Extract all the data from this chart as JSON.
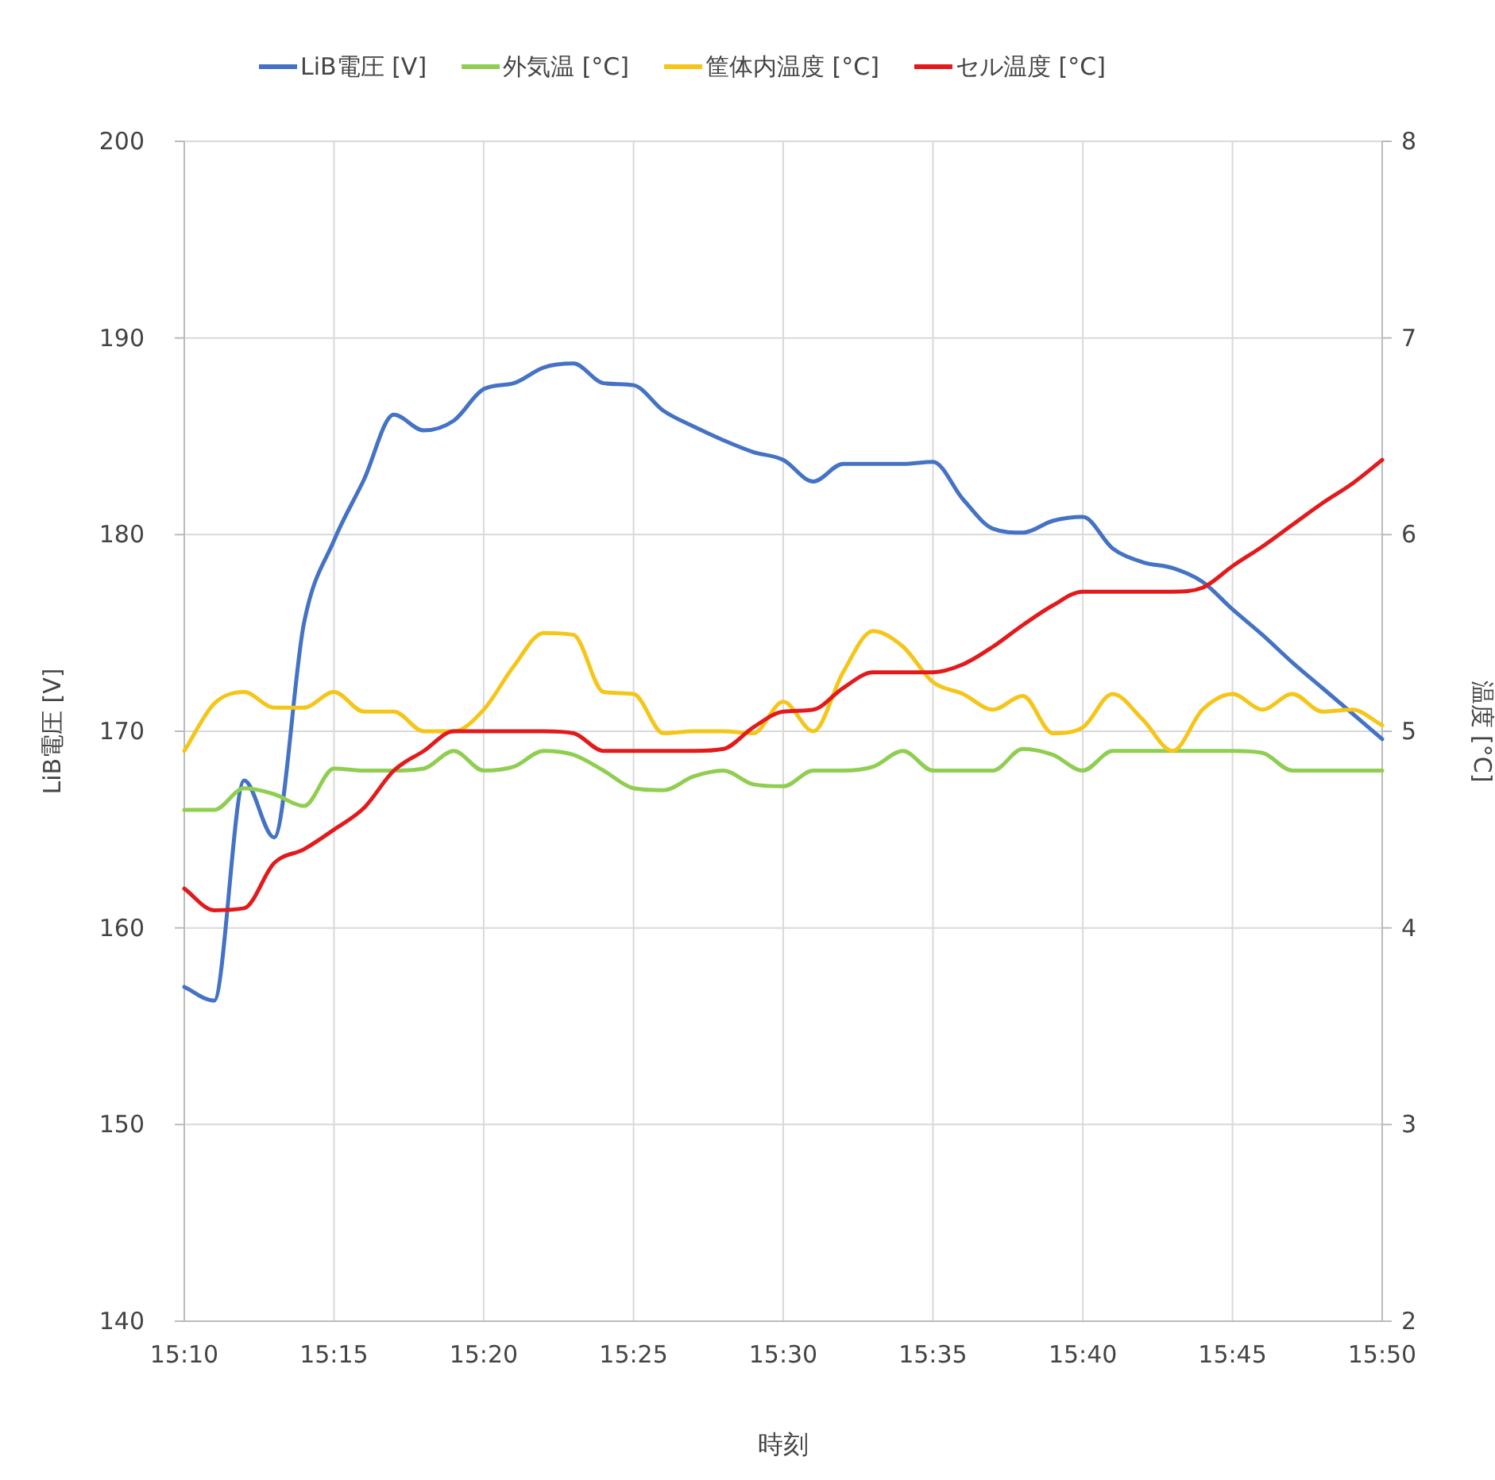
{
  "chart_data": {
    "type": "line",
    "xlabel": "時刻",
    "ylabel": "LiB電圧 [V]",
    "y2label": "温度 [°C]",
    "x": [
      15.1667,
      15.1833,
      15.2,
      15.2167,
      15.2333,
      15.25,
      15.2667,
      15.2833,
      15.3,
      15.3167,
      15.3333,
      15.35,
      15.3667,
      15.3833,
      15.4,
      15.4167,
      15.4333,
      15.45,
      15.4667,
      15.4833,
      15.5,
      15.5167,
      15.5333,
      15.55,
      15.5667,
      15.5833,
      15.6,
      15.6167,
      15.6333,
      15.65,
      15.6667,
      15.6833,
      15.7,
      15.7167,
      15.7333,
      15.75,
      15.7667,
      15.7833,
      15.8,
      15.8167,
      15.8333
    ],
    "series": [
      {
        "name": "LiB電圧 [V]",
        "color": "#4472c4",
        "values": [
          157.0,
          156.3,
          167.5,
          164.6,
          175.5,
          179.7,
          182.8,
          186.1,
          185.3,
          185.8,
          187.4,
          187.7,
          188.5,
          188.7,
          187.7,
          187.6,
          186.3,
          185.5,
          184.8,
          184.2,
          183.8,
          182.7,
          183.6,
          183.6,
          183.6,
          183.7,
          181.8,
          180.3,
          180.1,
          180.7,
          180.9,
          179.3,
          178.6,
          178.3,
          177.6,
          176.2,
          174.9,
          173.5,
          172.2,
          170.9,
          169.6
        ]
      },
      {
        "name": "外気温 [°C]",
        "color": "#8fce50",
        "axis": "y2",
        "values": [
          4.6,
          4.6,
          4.71,
          4.68,
          4.62,
          4.81,
          4.8,
          4.8,
          4.81,
          4.9,
          4.8,
          4.82,
          4.9,
          4.88,
          4.8,
          4.71,
          4.7,
          4.77,
          4.8,
          4.73,
          4.72,
          4.8,
          4.8,
          4.82,
          4.9,
          4.8,
          4.8,
          4.8,
          4.91,
          4.88,
          4.8,
          4.9,
          4.9,
          4.9,
          4.9,
          4.9,
          4.89,
          4.8,
          4.8,
          4.8,
          4.8
        ]
      },
      {
        "name": "筐体内温度 [°C]",
        "color": "#f5c518",
        "axis": "y2",
        "values": [
          4.9,
          5.14,
          5.2,
          5.12,
          5.12,
          5.2,
          5.1,
          5.1,
          5.0,
          5.0,
          5.11,
          5.33,
          5.5,
          5.49,
          5.2,
          5.19,
          4.99,
          5.0,
          5.0,
          4.99,
          5.15,
          5.0,
          5.3,
          5.51,
          5.43,
          5.25,
          5.19,
          5.11,
          5.18,
          4.99,
          5.02,
          5.19,
          5.06,
          4.9,
          5.11,
          5.19,
          5.11,
          5.19,
          5.1,
          5.11,
          5.03
        ]
      },
      {
        "name": "セル温度 [°C]",
        "color": "#e31a1c",
        "axis": "y2",
        "values": [
          4.2,
          4.09,
          4.1,
          4.33,
          4.4,
          4.5,
          4.61,
          4.8,
          4.9,
          5.0,
          5.0,
          5.0,
          5.0,
          4.99,
          4.9,
          4.9,
          4.9,
          4.9,
          4.91,
          5.02,
          5.1,
          5.11,
          5.22,
          5.3,
          5.3,
          5.3,
          5.34,
          5.43,
          5.54,
          5.64,
          5.71,
          5.71,
          5.71,
          5.71,
          5.73,
          5.84,
          5.94,
          6.05,
          6.16,
          6.26,
          6.38
        ]
      }
    ],
    "xlim": [
      15.1667,
      15.8333
    ],
    "xticks": [
      {
        "value": 15.1667,
        "label": "15:10"
      },
      {
        "value": 15.25,
        "label": "15:15"
      },
      {
        "value": 15.3333,
        "label": "15:20"
      },
      {
        "value": 15.4167,
        "label": "15:25"
      },
      {
        "value": 15.5,
        "label": "15:30"
      },
      {
        "value": 15.5833,
        "label": "15:35"
      },
      {
        "value": 15.6667,
        "label": "15:40"
      },
      {
        "value": 15.75,
        "label": "15:45"
      },
      {
        "value": 15.8333,
        "label": "15:50"
      }
    ],
    "ylim": [
      140,
      200
    ],
    "yticks": [
      140,
      150,
      160,
      170,
      180,
      190,
      200
    ],
    "y2lim": [
      2,
      8
    ],
    "y2ticks": [
      2,
      3,
      4,
      5,
      6,
      7,
      8
    ],
    "grid": true,
    "legend": "top"
  }
}
